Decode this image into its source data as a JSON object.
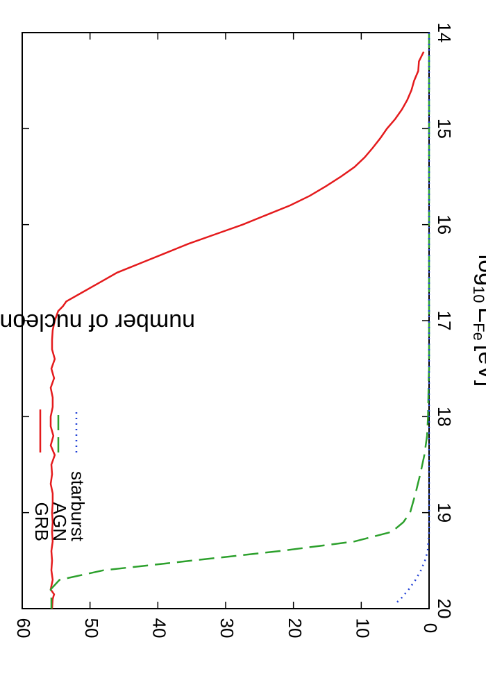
{
  "chart_data": {
    "type": "line",
    "xlabel": "log",
    "xlabel_sub": "10",
    "xlabel_E": "E",
    "xlabel_Esub": "Fe",
    "xlabel_unit": "[eV]",
    "ylabel": "number of nucleons disassociated",
    "xlim": [
      14,
      20
    ],
    "ylim": [
      0,
      60
    ],
    "x_ticks": [
      14,
      15,
      16,
      17,
      18,
      19,
      20
    ],
    "y_ticks": [
      0,
      10,
      20,
      30,
      40,
      50,
      60
    ],
    "orientation": "rotated 90 degrees clockwise",
    "legend_position": "top-left",
    "series": [
      {
        "name": "GRB",
        "color": "#e41a1c",
        "style": "solid",
        "points": [
          [
            14.2,
            0.8
          ],
          [
            14.3,
            1.5
          ],
          [
            14.4,
            1.6
          ],
          [
            14.5,
            2.2
          ],
          [
            14.6,
            2.6
          ],
          [
            14.7,
            3.2
          ],
          [
            14.8,
            4.0
          ],
          [
            14.9,
            5.0
          ],
          [
            15.0,
            6.2
          ],
          [
            15.1,
            7.2
          ],
          [
            15.2,
            8.3
          ],
          [
            15.3,
            9.5
          ],
          [
            15.4,
            11.0
          ],
          [
            15.5,
            13.0
          ],
          [
            15.6,
            15.2
          ],
          [
            15.7,
            17.6
          ],
          [
            15.8,
            20.5
          ],
          [
            15.9,
            24.0
          ],
          [
            16.0,
            27.5
          ],
          [
            16.1,
            31.5
          ],
          [
            16.2,
            35.5
          ],
          [
            16.3,
            39.0
          ],
          [
            16.4,
            42.5
          ],
          [
            16.5,
            46.0
          ],
          [
            16.6,
            48.5
          ],
          [
            16.7,
            51.0
          ],
          [
            16.8,
            53.5
          ],
          [
            16.85,
            54.0
          ],
          [
            16.9,
            54.7
          ],
          [
            17.0,
            55.2
          ],
          [
            17.1,
            55.5
          ],
          [
            17.2,
            55.6
          ],
          [
            17.3,
            55.6
          ],
          [
            17.4,
            55.2
          ],
          [
            17.5,
            55.7
          ],
          [
            17.6,
            55.3
          ],
          [
            17.7,
            55.8
          ],
          [
            17.8,
            55.5
          ],
          [
            17.9,
            55.5
          ],
          [
            18.0,
            55.8
          ],
          [
            18.1,
            55.8
          ],
          [
            18.2,
            55.4
          ],
          [
            18.3,
            55.8
          ],
          [
            18.4,
            55.2
          ],
          [
            18.5,
            55.7
          ],
          [
            18.6,
            55.6
          ],
          [
            18.7,
            55.8
          ],
          [
            18.8,
            55.5
          ],
          [
            18.9,
            55.5
          ],
          [
            19.0,
            55.6
          ],
          [
            19.1,
            55.5
          ],
          [
            19.2,
            55.6
          ],
          [
            19.3,
            55.5
          ],
          [
            19.4,
            55.7
          ],
          [
            19.5,
            55.6
          ],
          [
            19.6,
            55.7
          ],
          [
            19.7,
            55.5
          ],
          [
            19.8,
            55.8
          ],
          [
            19.85,
            55.3
          ],
          [
            19.9,
            55.5
          ],
          [
            20.0,
            55.6
          ]
        ]
      },
      {
        "name": "AGN",
        "color": "#2ca02c",
        "style": "dashed",
        "points": [
          [
            14.0,
            0.0
          ],
          [
            17.5,
            0.0
          ],
          [
            17.6,
            0.05
          ],
          [
            17.8,
            0.1
          ],
          [
            18.0,
            0.15
          ],
          [
            18.2,
            0.3
          ],
          [
            18.4,
            0.7
          ],
          [
            18.6,
            1.3
          ],
          [
            18.8,
            2.0
          ],
          [
            19.0,
            2.8
          ],
          [
            19.1,
            3.8
          ],
          [
            19.2,
            5.5
          ],
          [
            19.3,
            11.0
          ],
          [
            19.4,
            22.0
          ],
          [
            19.5,
            35.0
          ],
          [
            19.6,
            48.0
          ],
          [
            19.7,
            54.5
          ],
          [
            19.8,
            55.8
          ],
          [
            19.9,
            55.7
          ],
          [
            20.0,
            55.7
          ]
        ]
      },
      {
        "name": "starburst",
        "color": "#1f3fd6",
        "style": "dotted",
        "points": [
          [
            14.0,
            0.0
          ],
          [
            19.2,
            0.0
          ],
          [
            19.4,
            0.2
          ],
          [
            19.5,
            0.6
          ],
          [
            19.6,
            1.2
          ],
          [
            19.7,
            2.0
          ],
          [
            19.8,
            3.0
          ],
          [
            19.9,
            4.2
          ],
          [
            19.95,
            5.0
          ]
        ]
      }
    ]
  }
}
